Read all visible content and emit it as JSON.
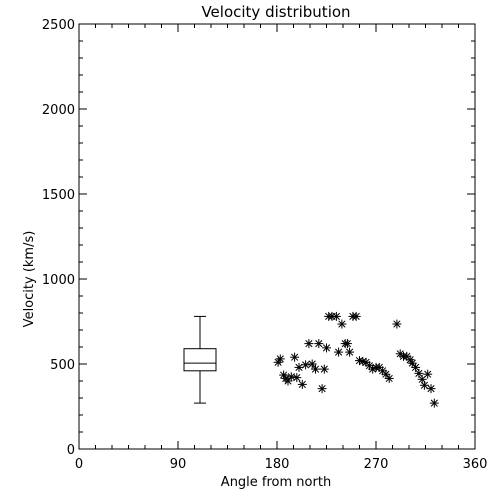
{
  "chart_data": {
    "type": "scatter",
    "title": "Velocity distribution",
    "xlabel": "Angle from north",
    "ylabel": "Velocity (km/s)",
    "xlim": [
      0,
      360
    ],
    "ylim": [
      0,
      2500
    ],
    "x_ticks": [
      0,
      90,
      180,
      270,
      360
    ],
    "y_ticks": [
      0,
      500,
      1000,
      1500,
      2000,
      2500
    ],
    "x_tick_labels": [
      "0",
      "90",
      "180",
      "270",
      "360"
    ],
    "y_tick_labels": [
      "0",
      "500",
      "1000",
      "1500",
      "2000",
      "2500"
    ],
    "marker": "asterisk",
    "grid": false,
    "boxplot": {
      "x": 110,
      "min": 270,
      "q1": 460,
      "median": 505,
      "q3": 590,
      "max": 780
    },
    "points": [
      {
        "x": 183,
        "y": 530
      },
      {
        "x": 181,
        "y": 510
      },
      {
        "x": 186,
        "y": 435
      },
      {
        "x": 188,
        "y": 415
      },
      {
        "x": 190,
        "y": 400
      },
      {
        "x": 193,
        "y": 425
      },
      {
        "x": 196,
        "y": 540
      },
      {
        "x": 198,
        "y": 420
      },
      {
        "x": 200,
        "y": 480
      },
      {
        "x": 203,
        "y": 380
      },
      {
        "x": 206,
        "y": 495
      },
      {
        "x": 209,
        "y": 620
      },
      {
        "x": 212,
        "y": 500
      },
      {
        "x": 215,
        "y": 470
      },
      {
        "x": 218,
        "y": 620
      },
      {
        "x": 221,
        "y": 355
      },
      {
        "x": 223,
        "y": 470
      },
      {
        "x": 225,
        "y": 595
      },
      {
        "x": 227,
        "y": 780
      },
      {
        "x": 230,
        "y": 780
      },
      {
        "x": 234,
        "y": 780
      },
      {
        "x": 236,
        "y": 570
      },
      {
        "x": 239,
        "y": 735
      },
      {
        "x": 242,
        "y": 620
      },
      {
        "x": 244,
        "y": 620
      },
      {
        "x": 246,
        "y": 570
      },
      {
        "x": 249,
        "y": 780
      },
      {
        "x": 252,
        "y": 780
      },
      {
        "x": 255,
        "y": 520
      },
      {
        "x": 258,
        "y": 515
      },
      {
        "x": 261,
        "y": 510
      },
      {
        "x": 264,
        "y": 490
      },
      {
        "x": 267,
        "y": 470
      },
      {
        "x": 270,
        "y": 480
      },
      {
        "x": 273,
        "y": 480
      },
      {
        "x": 276,
        "y": 460
      },
      {
        "x": 279,
        "y": 440
      },
      {
        "x": 282,
        "y": 415
      },
      {
        "x": 289,
        "y": 735
      },
      {
        "x": 292,
        "y": 560
      },
      {
        "x": 295,
        "y": 545
      },
      {
        "x": 298,
        "y": 545
      },
      {
        "x": 301,
        "y": 525
      },
      {
        "x": 303,
        "y": 505
      },
      {
        "x": 306,
        "y": 480
      },
      {
        "x": 309,
        "y": 445
      },
      {
        "x": 312,
        "y": 410
      },
      {
        "x": 314,
        "y": 375
      },
      {
        "x": 317,
        "y": 440
      },
      {
        "x": 320,
        "y": 355
      },
      {
        "x": 323,
        "y": 270
      }
    ]
  }
}
